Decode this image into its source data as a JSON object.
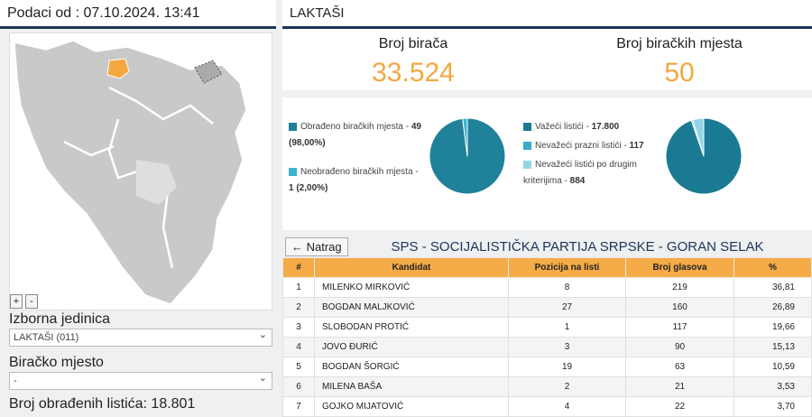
{
  "left": {
    "header": "Podaci od : 07.10.2024. 13:41",
    "zoom_in": "+",
    "zoom_out": "-",
    "unit_label": "Izborna jedinica",
    "unit_select": "LAKTAŠI (011)",
    "station_label": "Biračko mjesto",
    "station_select": "-",
    "processed": "Broj obrađenih listića: 18.801"
  },
  "right": {
    "header": "LAKTAŠI",
    "stats": [
      {
        "label": "Broj birača",
        "value": "33.524"
      },
      {
        "label": "Broj biračkih mjesta",
        "value": "50"
      }
    ],
    "pies": [
      {
        "type": "pie",
        "items": [
          {
            "label": "Obrađeno biračkih mjesta -",
            "value_label": "49 (98,00%)",
            "value": 49,
            "color": "#20819a"
          },
          {
            "label": "Neobrađeno biračkih mjesta -",
            "value_label": "1 (2,00%)",
            "value": 1,
            "color": "#3cb3cf"
          }
        ]
      },
      {
        "type": "pie",
        "items": [
          {
            "label": "Važeći listići -",
            "value_label": "17.800",
            "value": 17800,
            "color": "#1b7a93"
          },
          {
            "label": "Nevažeći prazni listići -",
            "value_label": "117",
            "value": 117,
            "color": "#3aaac8"
          },
          {
            "label": "Nevažeći listići po drugim kriterijima -",
            "value_label": "884",
            "value": 884,
            "color": "#93d5e6"
          }
        ]
      }
    ],
    "back": "← Natrag",
    "title": "SPS - SOCIJALISTIČKA PARTIJA SRPSKE - GORAN SELAK",
    "table": {
      "headers": [
        "#",
        "Kandidat",
        "Pozicija na listi",
        "Broj glasova",
        "%"
      ],
      "rows": [
        [
          "1",
          "MILENKO MIRKOVIĆ",
          "8",
          "219",
          "36,81"
        ],
        [
          "2",
          "BOGDAN MALJKOVIĆ",
          "27",
          "160",
          "26,89"
        ],
        [
          "3",
          "SLOBODAN PROTIĆ",
          "1",
          "117",
          "19,66"
        ],
        [
          "4",
          "JOVO ĐURIĆ",
          "3",
          "90",
          "15,13"
        ],
        [
          "5",
          "BOGDAN ŠORGIĆ",
          "19",
          "63",
          "10,59"
        ],
        [
          "6",
          "MILENA BAŠA",
          "2",
          "21",
          "3,53"
        ],
        [
          "7",
          "GOJKO MIJATOVIĆ",
          "4",
          "22",
          "3,70"
        ]
      ]
    }
  }
}
